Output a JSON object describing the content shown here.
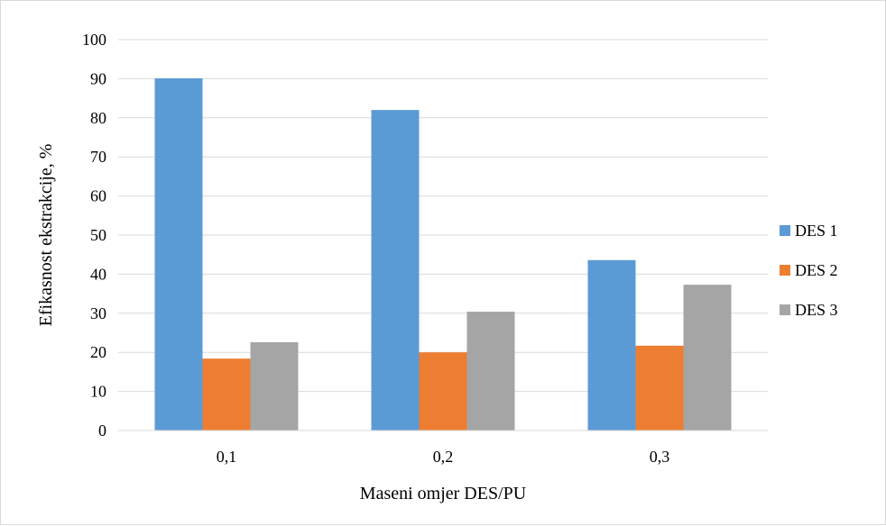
{
  "chart_data": {
    "type": "bar",
    "title": "",
    "xlabel": "Maseni omjer DES/PU",
    "ylabel": "Efikasnost ekstrakcije, %",
    "categories": [
      "0,1",
      "0,2",
      "0,3"
    ],
    "series": [
      {
        "name": "DES 1",
        "color": "#5b9bd5",
        "values": [
          90.1,
          82.0,
          43.6
        ]
      },
      {
        "name": "DES 2",
        "color": "#ed7d31",
        "values": [
          18.4,
          20.0,
          21.7
        ]
      },
      {
        "name": "DES 3",
        "color": "#a5a5a5",
        "values": [
          22.6,
          30.4,
          37.3
        ]
      }
    ],
    "ylim": [
      0,
      100
    ],
    "yticks": [
      0,
      10,
      20,
      30,
      40,
      50,
      60,
      70,
      80,
      90,
      100
    ],
    "ytick_labels": [
      "0",
      "10",
      "20",
      "30",
      "40",
      "50",
      "60",
      "70",
      "80",
      "90",
      "100"
    ],
    "grid": true,
    "gridline_color": "#d9d9d9",
    "legend_position": "right"
  }
}
